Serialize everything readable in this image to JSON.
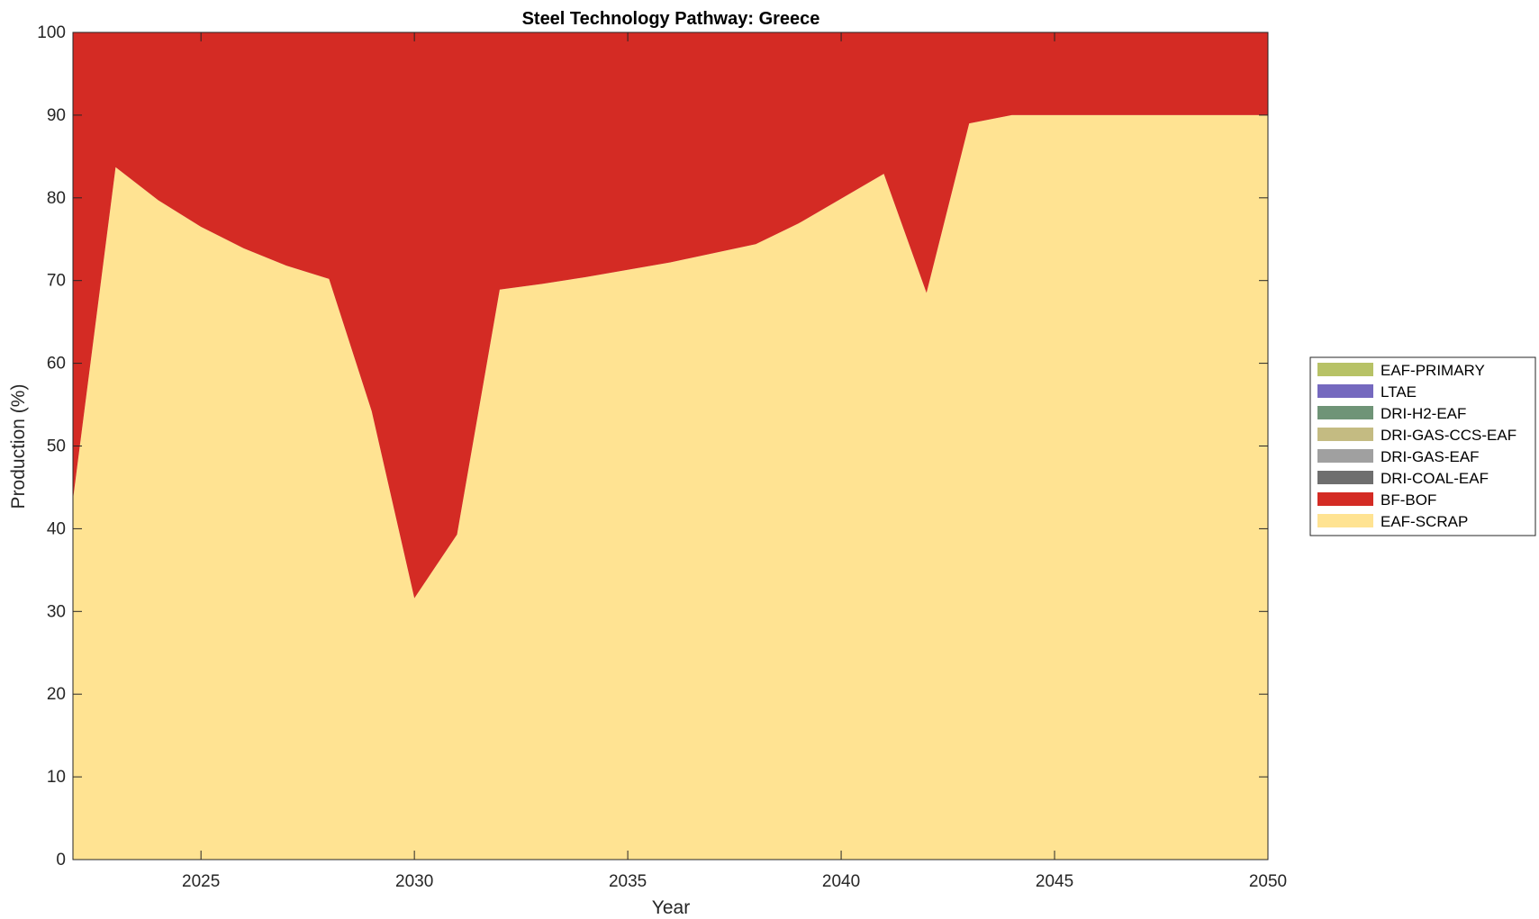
{
  "chart_data": {
    "type": "area",
    "stacked": true,
    "title": "Steel Technology Pathway: Greece",
    "xlabel": "Year",
    "ylabel": "Production (%)",
    "xlim": [
      2022,
      2050
    ],
    "ylim": [
      0,
      100
    ],
    "x_ticks": [
      2025,
      2030,
      2035,
      2040,
      2045,
      2050
    ],
    "y_ticks": [
      0,
      10,
      20,
      30,
      40,
      50,
      60,
      70,
      80,
      90,
      100
    ],
    "grid": false,
    "legend_position": "right",
    "x": [
      2022,
      2023,
      2024,
      2025,
      2026,
      2027,
      2028,
      2029,
      2030,
      2031,
      2032,
      2033,
      2034,
      2035,
      2036,
      2037,
      2038,
      2039,
      2040,
      2041,
      2042,
      2043,
      2044,
      2045,
      2046,
      2047,
      2048,
      2049,
      2050
    ],
    "series": [
      {
        "name": "EAF-SCRAP",
        "color": "#FFE392",
        "values": [
          43.5,
          83.7,
          79.7,
          76.5,
          73.9,
          71.8,
          70.2,
          54.2,
          31.6,
          39.3,
          68.9,
          69.6,
          70.4,
          71.3,
          72.2,
          73.3,
          74.4,
          76.9,
          79.9,
          82.9,
          68.5,
          89.0,
          90.0,
          90.0,
          90.0,
          90.0,
          90.0,
          90.0,
          90.0
        ]
      },
      {
        "name": "BF-BOF",
        "color": "#D42B24",
        "values": [
          56.5,
          16.3,
          20.3,
          23.5,
          26.1,
          28.2,
          29.8,
          45.8,
          68.4,
          60.7,
          31.1,
          30.4,
          29.6,
          28.7,
          27.8,
          26.7,
          25.6,
          23.1,
          20.1,
          17.1,
          31.5,
          11.0,
          10.0,
          10.0,
          10.0,
          10.0,
          10.0,
          10.0,
          10.0
        ]
      },
      {
        "name": "DRI-COAL-EAF",
        "color": "#6E6E6E",
        "values": [
          0,
          0,
          0,
          0,
          0,
          0,
          0,
          0,
          0,
          0,
          0,
          0,
          0,
          0,
          0,
          0,
          0,
          0,
          0,
          0,
          0,
          0,
          0,
          0,
          0,
          0,
          0,
          0,
          0
        ]
      },
      {
        "name": "DRI-GAS-EAF",
        "color": "#A0A0A0",
        "values": [
          0,
          0,
          0,
          0,
          0,
          0,
          0,
          0,
          0,
          0,
          0,
          0,
          0,
          0,
          0,
          0,
          0,
          0,
          0,
          0,
          0,
          0,
          0,
          0,
          0,
          0,
          0,
          0,
          0
        ]
      },
      {
        "name": "DRI-GAS-CCS-EAF",
        "color": "#C4BB82",
        "values": [
          0,
          0,
          0,
          0,
          0,
          0,
          0,
          0,
          0,
          0,
          0,
          0,
          0,
          0,
          0,
          0,
          0,
          0,
          0,
          0,
          0,
          0,
          0,
          0,
          0,
          0,
          0,
          0,
          0
        ]
      },
      {
        "name": "DRI-H2-EAF",
        "color": "#6F9477",
        "values": [
          0,
          0,
          0,
          0,
          0,
          0,
          0,
          0,
          0,
          0,
          0,
          0,
          0,
          0,
          0,
          0,
          0,
          0,
          0,
          0,
          0,
          0,
          0,
          0,
          0,
          0,
          0,
          0,
          0
        ]
      },
      {
        "name": "LTAE",
        "color": "#7569BF",
        "values": [
          0,
          0,
          0,
          0,
          0,
          0,
          0,
          0,
          0,
          0,
          0,
          0,
          0,
          0,
          0,
          0,
          0,
          0,
          0,
          0,
          0,
          0,
          0,
          0,
          0,
          0,
          0,
          0,
          0
        ]
      },
      {
        "name": "EAF-PRIMARY",
        "color": "#B7C266",
        "values": [
          0,
          0,
          0,
          0,
          0,
          0,
          0,
          0,
          0,
          0,
          0,
          0,
          0,
          0,
          0,
          0,
          0,
          0,
          0,
          0,
          0,
          0,
          0,
          0,
          0,
          0,
          0,
          0,
          0
        ]
      }
    ],
    "legend_order": [
      "EAF-PRIMARY",
      "LTAE",
      "DRI-H2-EAF",
      "DRI-GAS-CCS-EAF",
      "DRI-GAS-EAF",
      "DRI-COAL-EAF",
      "BF-BOF",
      "EAF-SCRAP"
    ]
  }
}
